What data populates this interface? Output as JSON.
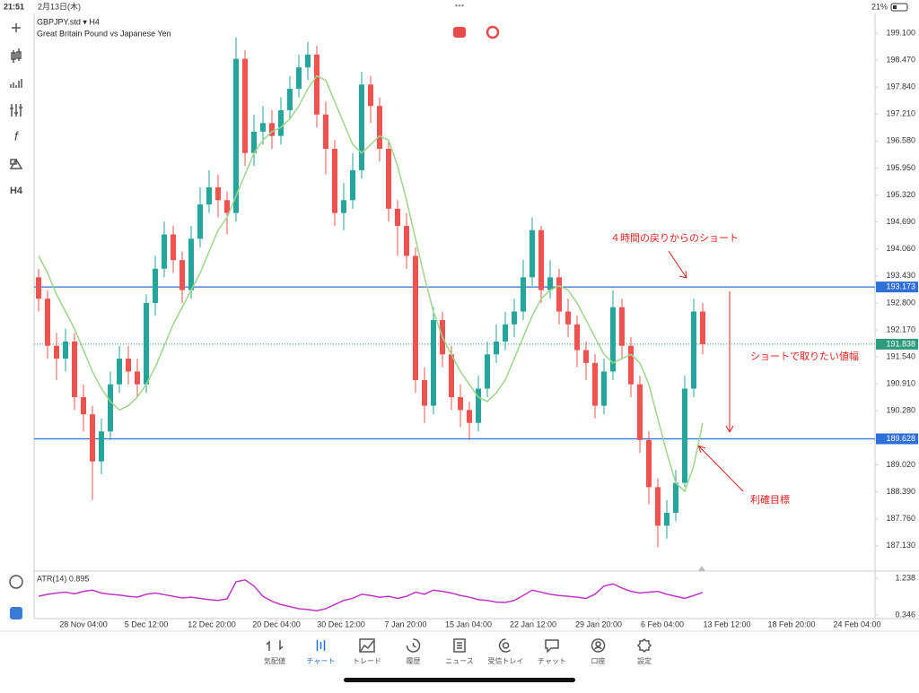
{
  "status_bar": {
    "time": "21:51",
    "date": "2月13日(木)",
    "battery": "21%"
  },
  "toolbar": {
    "timeframe": "H4"
  },
  "chart_data": {
    "type": "candlestick",
    "title": "GBPJPY.std ▾ H4",
    "subtitle": "Great Britain Pound vs Japanese Yen",
    "open": [
      193.4,
      192.9,
      191.8,
      191.5,
      191.9,
      190.6,
      190.2,
      189.1,
      189.8,
      190.9,
      191.5,
      191.2,
      190.9,
      192.8,
      193.6,
      194.4,
      193.8,
      193.1,
      194.3,
      195.1,
      195.5,
      195.2,
      194.9,
      198.5,
      196.3,
      196.8,
      197.0,
      196.7,
      197.3,
      197.8,
      198.3,
      198.6,
      197.2,
      196.4,
      194.9,
      195.2,
      195.9,
      197.9,
      197.4,
      196.4,
      195.0,
      194.6,
      193.9,
      191.0,
      190.4,
      192.4,
      191.6,
      190.6,
      190.3,
      190.0,
      190.8,
      191.6,
      191.9,
      192.3,
      192.6,
      193.4,
      194.5,
      193.1,
      193.4,
      192.6,
      192.3,
      191.7,
      191.4,
      190.4,
      191.2,
      192.7,
      191.8,
      190.9,
      189.6,
      188.5,
      187.6,
      187.9,
      188.6,
      190.8,
      192.6
    ],
    "high": [
      193.6,
      193.1,
      192.1,
      192.2,
      192.1,
      190.9,
      190.4,
      190.1,
      191.2,
      191.8,
      191.8,
      191.5,
      193.0,
      193.9,
      194.7,
      194.6,
      194.0,
      194.6,
      195.5,
      195.9,
      195.8,
      195.4,
      199.0,
      198.7,
      197.2,
      197.4,
      197.3,
      197.6,
      198.1,
      198.6,
      198.9,
      198.8,
      197.5,
      196.6,
      195.6,
      196.3,
      198.2,
      198.1,
      197.6,
      196.6,
      195.2,
      194.9,
      194.1,
      191.3,
      192.7,
      192.6,
      191.8,
      190.9,
      190.5,
      191.1,
      191.9,
      192.3,
      192.6,
      192.9,
      193.8,
      194.8,
      194.6,
      193.8,
      193.6,
      192.9,
      192.5,
      191.9,
      191.6,
      191.5,
      193.1,
      192.9,
      192.0,
      191.1,
      189.8,
      188.7,
      188.2,
      188.9,
      191.1,
      192.9,
      192.8
    ],
    "low": [
      192.6,
      191.5,
      191.0,
      191.2,
      190.3,
      189.8,
      188.2,
      188.8,
      189.6,
      190.7,
      190.9,
      190.6,
      190.7,
      192.5,
      193.4,
      193.5,
      192.8,
      192.9,
      194.1,
      194.9,
      194.8,
      194.4,
      194.7,
      196.0,
      196.0,
      196.5,
      196.4,
      196.5,
      197.1,
      197.6,
      198.0,
      196.9,
      195.8,
      194.6,
      194.5,
      195.0,
      195.7,
      197.0,
      196.1,
      194.7,
      193.9,
      193.6,
      190.7,
      190.0,
      190.2,
      191.3,
      190.3,
      189.9,
      189.6,
      189.8,
      190.6,
      191.4,
      191.7,
      192.0,
      192.4,
      193.2,
      192.8,
      192.9,
      192.3,
      192.0,
      191.3,
      191.0,
      190.1,
      190.2,
      191.0,
      191.5,
      190.6,
      189.3,
      188.1,
      187.1,
      187.3,
      187.7,
      188.5,
      190.6,
      191.6
    ],
    "close": [
      192.9,
      191.8,
      191.5,
      191.9,
      190.6,
      190.2,
      189.1,
      189.8,
      190.9,
      191.5,
      191.2,
      190.9,
      192.8,
      193.6,
      194.4,
      193.8,
      193.1,
      194.3,
      195.1,
      195.5,
      195.2,
      194.9,
      198.5,
      196.3,
      196.8,
      197.0,
      196.7,
      197.3,
      197.8,
      198.3,
      198.6,
      197.2,
      196.4,
      194.9,
      195.2,
      195.9,
      197.9,
      197.4,
      196.4,
      195.0,
      194.6,
      193.9,
      191.0,
      190.4,
      192.4,
      191.6,
      190.6,
      190.3,
      190.0,
      190.8,
      191.6,
      191.9,
      192.3,
      192.6,
      193.4,
      194.5,
      193.1,
      193.4,
      192.6,
      192.3,
      191.7,
      191.4,
      190.4,
      191.2,
      192.7,
      191.8,
      190.9,
      189.6,
      188.5,
      187.6,
      187.9,
      188.6,
      190.8,
      192.6,
      191.838
    ],
    "up_color": "#26a69a",
    "down_color": "#ef5350",
    "moving_average": {
      "color": "#9dd68a",
      "values": [
        193.9,
        193.5,
        193.0,
        192.6,
        192.2,
        191.7,
        191.2,
        190.8,
        190.5,
        190.3,
        190.4,
        190.6,
        190.9,
        191.3,
        191.8,
        192.3,
        192.7,
        193.1,
        193.5,
        194.0,
        194.5,
        194.8,
        195.3,
        195.8,
        196.3,
        196.6,
        196.8,
        196.9,
        197.1,
        197.4,
        197.8,
        198.1,
        198.0,
        197.5,
        197.0,
        196.5,
        196.3,
        196.5,
        196.7,
        196.6,
        196.0,
        195.2,
        194.3,
        193.4,
        192.6,
        192.0,
        191.6,
        191.2,
        190.9,
        190.6,
        190.5,
        190.7,
        191.0,
        191.5,
        192.0,
        192.5,
        192.9,
        193.1,
        193.2,
        193.1,
        192.8,
        192.4,
        192.0,
        191.6,
        191.4,
        191.5,
        191.6,
        191.4,
        190.9,
        190.1,
        189.3,
        188.6,
        188.4,
        189.0,
        190.0
      ]
    },
    "xlim": [
      -0.5,
      93.2
    ],
    "xticks": [
      {
        "value": 5.0,
        "label": "28 Nov 04:00"
      },
      {
        "value": 12.0,
        "label": "5 Dec 12:00"
      },
      {
        "value": 19.3,
        "label": "12 Dec 20:00"
      },
      {
        "value": 26.5,
        "label": "20 Dec 04:00"
      },
      {
        "value": 33.7,
        "label": "30 Dec 12:00"
      },
      {
        "value": 40.9,
        "label": "7 Jan 20:00"
      },
      {
        "value": 47.9,
        "label": "15 Jan 04:00"
      },
      {
        "value": 55.1,
        "label": "22 Jan 12:00"
      },
      {
        "value": 62.4,
        "label": "29 Jan 20:00"
      },
      {
        "value": 69.5,
        "label": "6 Feb 04:00"
      },
      {
        "value": 76.7,
        "label": "13 Feb 12:00"
      },
      {
        "value": 83.9,
        "label": "18 Feb 20:00"
      },
      {
        "value": 91.2,
        "label": "24 Feb 04:00"
      }
    ],
    "ylim": [
      186.54,
      199.56
    ],
    "yticks": [
      {
        "value": 199.1,
        "label": "199.100"
      },
      {
        "value": 198.47,
        "label": "198.470"
      },
      {
        "value": 197.84,
        "label": "197.840"
      },
      {
        "value": 197.21,
        "label": "197.210"
      },
      {
        "value": 196.58,
        "label": "196.580"
      },
      {
        "value": 195.95,
        "label": "195.950"
      },
      {
        "value": 195.32,
        "label": "195.320"
      },
      {
        "value": 194.69,
        "label": "194.690"
      },
      {
        "value": 194.06,
        "label": "194.060"
      },
      {
        "value": 193.43,
        "label": "193.430"
      },
      {
        "value": 192.8,
        "label": "192.800"
      },
      {
        "value": 192.17,
        "label": "192.170"
      },
      {
        "value": 191.54,
        "label": "191.540"
      },
      {
        "value": 190.91,
        "label": "190.910"
      },
      {
        "value": 190.28,
        "label": "190.280"
      },
      {
        "value": 189.02,
        "label": "189.020"
      },
      {
        "value": 188.39,
        "label": "188.390"
      },
      {
        "value": 187.76,
        "label": "187.760"
      },
      {
        "value": 187.13,
        "label": "187.130"
      }
    ],
    "levels": [
      193.173,
      189.628
    ],
    "level_color": "#2f6fd8",
    "current_price": 191.838,
    "current_color": "#2e9a7e",
    "annotations": [
      "４時間の戻りからのショート",
      "ショートで取りたい値幅",
      "利確目標"
    ],
    "atr": {
      "label": "ATR(14) 0.895",
      "color": "#c035c8",
      "ylim": [
        0.26,
        1.39
      ],
      "yticks": [
        {
          "value": 1.238,
          "label": "1.238"
        },
        {
          "value": 0.346,
          "label": "0.346"
        }
      ],
      "values": [
        0.8,
        0.85,
        0.88,
        0.9,
        0.86,
        0.92,
        0.95,
        0.88,
        0.85,
        0.83,
        0.8,
        0.78,
        0.85,
        0.88,
        0.84,
        0.8,
        0.76,
        0.78,
        0.75,
        0.72,
        0.7,
        0.74,
        1.15,
        1.2,
        1.05,
        0.8,
        0.68,
        0.6,
        0.55,
        0.5,
        0.48,
        0.45,
        0.5,
        0.6,
        0.7,
        0.75,
        0.85,
        0.82,
        0.78,
        0.8,
        0.75,
        0.8,
        0.9,
        0.85,
        0.95,
        0.92,
        0.88,
        0.82,
        0.78,
        0.72,
        0.7,
        0.66,
        0.65,
        0.7,
        0.82,
        0.95,
        0.9,
        0.85,
        0.82,
        0.8,
        0.78,
        0.75,
        0.85,
        1.05,
        1.1,
        1.0,
        0.92,
        0.88,
        0.9,
        0.92,
        0.85,
        0.8,
        0.75,
        0.82,
        0.895
      ]
    }
  },
  "tabs": [
    "気配値",
    "チャート",
    "トレード",
    "履歴",
    "ニュース",
    "受信トレイ",
    "チャット",
    "口座",
    "設定"
  ]
}
